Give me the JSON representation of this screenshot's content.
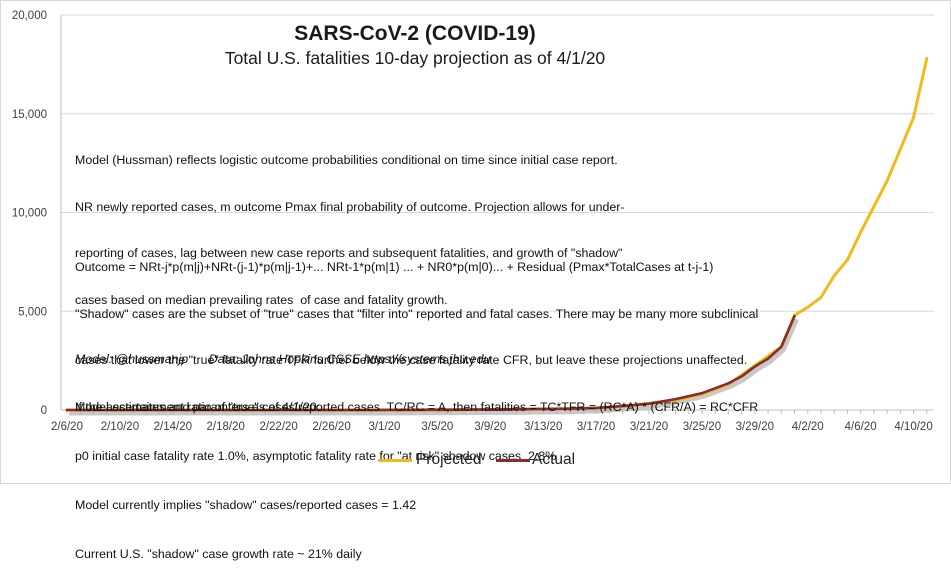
{
  "chart_data": {
    "type": "line",
    "title": "SARS-CoV-2 (COVID-19)",
    "subtitle": "Total U.S. fatalities 10-day projection as of 4/1/20",
    "x_start": "2/6/20",
    "x_end": "4/11/20",
    "x_ticks": [
      "2/6/20",
      "2/10/20",
      "2/14/20",
      "2/18/20",
      "2/22/20",
      "2/26/20",
      "3/1/20",
      "3/5/20",
      "3/9/20",
      "3/13/20",
      "3/17/20",
      "3/21/20",
      "3/25/20",
      "3/29/20",
      "4/2/20",
      "4/6/20",
      "4/10/20"
    ],
    "y_ticks": [
      "0",
      "5,000",
      "10,000",
      "15,000",
      "20,000"
    ],
    "ylim": [
      0,
      20000
    ],
    "grid": true,
    "legend_position": "bottom",
    "series": [
      {
        "name": "Projected",
        "color": "#f2b91a",
        "x": [
          "2/6/20",
          "2/29/20",
          "3/5/20",
          "3/10/20",
          "3/15/20",
          "3/17/20",
          "3/19/20",
          "3/21/20",
          "3/23/20",
          "3/25/20",
          "3/27/20",
          "3/29/20",
          "3/31/20",
          "4/1/20",
          "4/2/20",
          "4/3/20",
          "4/4/20",
          "4/5/20",
          "4/6/20",
          "4/7/20",
          "4/8/20",
          "4/9/20",
          "4/10/20",
          "4/11/20"
        ],
        "values": [
          0,
          2,
          11,
          30,
          60,
          100,
          180,
          330,
          500,
          800,
          1300,
          2250,
          3200,
          4800,
          5200,
          5700,
          6800,
          7600,
          9000,
          10300,
          11600,
          13200,
          14800,
          17800
        ]
      },
      {
        "name": "Actual",
        "color": "#8b2b2b",
        "x": [
          "2/6/20",
          "2/29/20",
          "3/5/20",
          "3/10/20",
          "3/15/20",
          "3/16/20",
          "3/17/20",
          "3/19/20",
          "3/21/20",
          "3/23/20",
          "3/25/20",
          "3/27/20",
          "3/28/20",
          "3/29/20",
          "3/30/20",
          "3/31/20",
          "4/1/20"
        ],
        "values": [
          0,
          1,
          11,
          28,
          68,
          85,
          108,
          200,
          320,
          550,
          850,
          1350,
          1700,
          2200,
          2600,
          3200,
          4750
        ]
      }
    ]
  },
  "notes": {
    "model_text": [
      "Model (Hussman) reflects logistic outcome probabilities conditional on time since initial case report.",
      "NR newly reported cases, m outcome Pmax final probability of outcome. Projection allows for under-",
      "reporting of cases, lag between new case reports and subsequent fatalities, and growth of \"shadow\"",
      "cases based on median prevailing rates  of case and fatality growth."
    ],
    "outcome_text": [
      "Outcome = NRt-j*p(m|j)+NRt-(j-1)*p(m|j-1)+... NRt-1*p(m|1) ... + NR0*p(m|0)... + Residual (Pmax*TotalCases at t-j-1)",
      "\"Shadow\" cases are the subset of \"true\" cases that \"filter into\" reported and fatal cases. There may be many more subclinical",
      "cases that lower the \"true\" fatality rate TFR further below the case fatality rate CFR, but leave these projections unaffected.",
      "If the ascertainment ratio of \"true\" cases/reported cases  TC/RC = A, then fatalities = TC*TFR = (RC*A) * (CFR/A) = RC*CFR"
    ],
    "model_credit": "Model: @hussmanjp      Data: Johns Hopkins CSSE https://systems.jhu.edu",
    "params_text": [
      "Model estimates and paramters as of 4/1/20:",
      "p0 initial case fatality rate 1.0%, asymptotic fatality rate for \"at risk\" shadow cases  2.8%",
      "Model currently implies \"shadow\" cases/reported cases = 1.42",
      "Current U.S. \"shadow\" case growth rate ~ 21% daily"
    ]
  }
}
